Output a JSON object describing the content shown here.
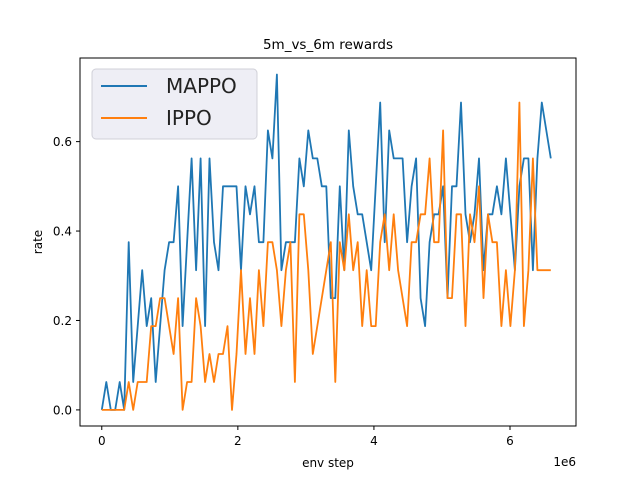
{
  "chart_data": {
    "type": "line",
    "title": "5m_vs_6m rewards",
    "xlabel": "env step",
    "ylabel": "rate",
    "x_offset_label": "1e6",
    "xlim": [
      -0.32,
      6.97
    ],
    "ylim": [
      -0.036,
      0.787
    ],
    "xticks": [
      0,
      2,
      4,
      6
    ],
    "xtick_labels": [
      "0",
      "2",
      "4",
      "6"
    ],
    "yticks": [
      0,
      0.2,
      0.4,
      0.6
    ],
    "ytick_labels": [
      "0.0",
      "0.2",
      "0.4",
      "0.6"
    ],
    "grid": false,
    "legend_placement": "top-left",
    "x": [
      0,
      0.066,
      0.132,
      0.198,
      0.264,
      0.33,
      0.396,
      0.462,
      0.528,
      0.594,
      0.66,
      0.726,
      0.792,
      0.858,
      0.924,
      0.99,
      1.056,
      1.122,
      1.188,
      1.254,
      1.32,
      1.386,
      1.452,
      1.518,
      1.584,
      1.65,
      1.716,
      1.782,
      1.848,
      1.914,
      1.98,
      2.046,
      2.112,
      2.178,
      2.244,
      2.31,
      2.376,
      2.442,
      2.508,
      2.574,
      2.64,
      2.706,
      2.772,
      2.838,
      2.904,
      2.97,
      3.036,
      3.102,
      3.168,
      3.234,
      3.3,
      3.366,
      3.432,
      3.498,
      3.564,
      3.63,
      3.696,
      3.762,
      3.828,
      3.894,
      3.96,
      4.026,
      4.092,
      4.158,
      4.224,
      4.29,
      4.356,
      4.422,
      4.488,
      4.554,
      4.62,
      4.686,
      4.752,
      4.818,
      4.884,
      4.95,
      5.016,
      5.082,
      5.148,
      5.214,
      5.28,
      5.346,
      5.412,
      5.478,
      5.544,
      5.61,
      5.676,
      5.742,
      5.808,
      5.874,
      5.94,
      6.006,
      6.072,
      6.138,
      6.204,
      6.27,
      6.336,
      6.402,
      6.468,
      6.534,
      6.6
    ],
    "series": [
      {
        "name": "MAPPO",
        "color": "#1f77b4",
        "values": [
          0,
          0.0625,
          0,
          0,
          0.0625,
          0,
          0.375,
          0.0625,
          0.1875,
          0.3125,
          0.1875,
          0.25,
          0.0625,
          0.1875,
          0.3125,
          0.375,
          0.375,
          0.5,
          0.1875,
          0.375,
          0.5625,
          0.3125,
          0.5625,
          0.1875,
          0.5625,
          0.375,
          0.3125,
          0.5,
          0.5,
          0.5,
          0.5,
          0.3125,
          0.5,
          0.4375,
          0.5,
          0.375,
          0.375,
          0.625,
          0.5625,
          0.75,
          0.3125,
          0.375,
          0.375,
          0.375,
          0.5625,
          0.5,
          0.625,
          0.5625,
          0.5625,
          0.5,
          0.5,
          0.25,
          0.25,
          0.5,
          0.3125,
          0.625,
          0.5,
          0.4375,
          0.4375,
          0.375,
          0.3125,
          0.5,
          0.6875,
          0.375,
          0.625,
          0.5625,
          0.5625,
          0.5625,
          0.375,
          0.5,
          0.5625,
          0.25,
          0.1875,
          0.375,
          0.4375,
          0.4375,
          0.5,
          0.25,
          0.5,
          0.5,
          0.6875,
          0.4375,
          0.375,
          0.4375,
          0.5625,
          0.3125,
          0.4375,
          0.4375,
          0.5,
          0.4375,
          0.5625,
          0.4375,
          0.3125,
          0.5,
          0.5625,
          0.5625,
          0.3125,
          0.5625,
          0.6875,
          0.625,
          0.5625
        ]
      },
      {
        "name": "IPPO",
        "color": "#ff7f0e",
        "values": [
          0,
          0,
          0,
          0,
          0,
          0,
          0.0625,
          0,
          0.0625,
          0.0625,
          0.0625,
          0.1875,
          0.1875,
          0.25,
          0.25,
          0.1875,
          0.125,
          0.25,
          0,
          0.0625,
          0.0625,
          0.25,
          0.1875,
          0.0625,
          0.125,
          0.0625,
          0.125,
          0.125,
          0.1875,
          0,
          0.125,
          0.3125,
          0.125,
          0.25,
          0.125,
          0.3125,
          0.1875,
          0.375,
          0.375,
          0.3125,
          0.1875,
          0.3125,
          0.375,
          0.0625,
          0.4375,
          0.4375,
          0.3125,
          0.125,
          0.1875,
          0.25,
          0.3125,
          0.375,
          0.0625,
          0.375,
          0.3125,
          0.4375,
          0.3125,
          0.375,
          0.1875,
          0.3125,
          0.1875,
          0.1875,
          0.375,
          0.4375,
          0.3125,
          0.4375,
          0.3125,
          0.25,
          0.1875,
          0.375,
          0.375,
          0.4375,
          0.4375,
          0.5625,
          0.375,
          0.375,
          0.625,
          0.25,
          0.25,
          0.4375,
          0.4375,
          0.1875,
          0.4375,
          0.375,
          0.5,
          0.25,
          0.4375,
          0.375,
          0.375,
          0.1875,
          0.3125,
          0.1875,
          0.3125,
          0.6875,
          0.1875,
          0.3125,
          0.5625,
          0.3125,
          0.3125,
          0.3125,
          0.3125
        ]
      }
    ]
  }
}
